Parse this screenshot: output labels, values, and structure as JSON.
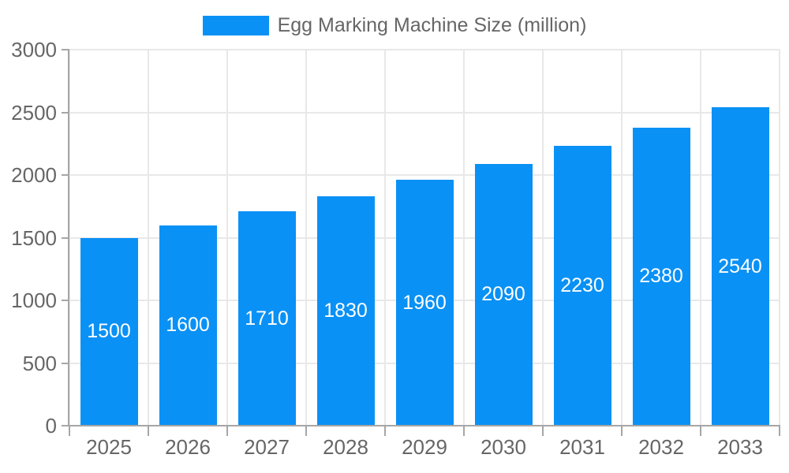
{
  "legend": {
    "label": "Egg Marking Machine Size (million)"
  },
  "colors": {
    "bar": "#0a91f5",
    "grid": "#e8e8e8",
    "axis": "#a6a6a6",
    "tick_text": "#666666",
    "bar_label_text": "#ffffff",
    "background": "#ffffff"
  },
  "chart_data": {
    "type": "bar",
    "title": "Egg Marking Machine Size (million)",
    "categories": [
      "2025",
      "2026",
      "2027",
      "2028",
      "2029",
      "2030",
      "2031",
      "2032",
      "2033"
    ],
    "values": [
      1500,
      1600,
      1710,
      1830,
      1960,
      2090,
      2230,
      2380,
      2540
    ],
    "xlabel": "",
    "ylabel": "",
    "ylim": [
      0,
      3000
    ],
    "yticks": [
      0,
      500,
      1000,
      1500,
      2000,
      2500,
      3000
    ],
    "grid": true,
    "legend_position": "top",
    "bar_labels_shown": true,
    "bar_label_position": "center-of-bar"
  }
}
